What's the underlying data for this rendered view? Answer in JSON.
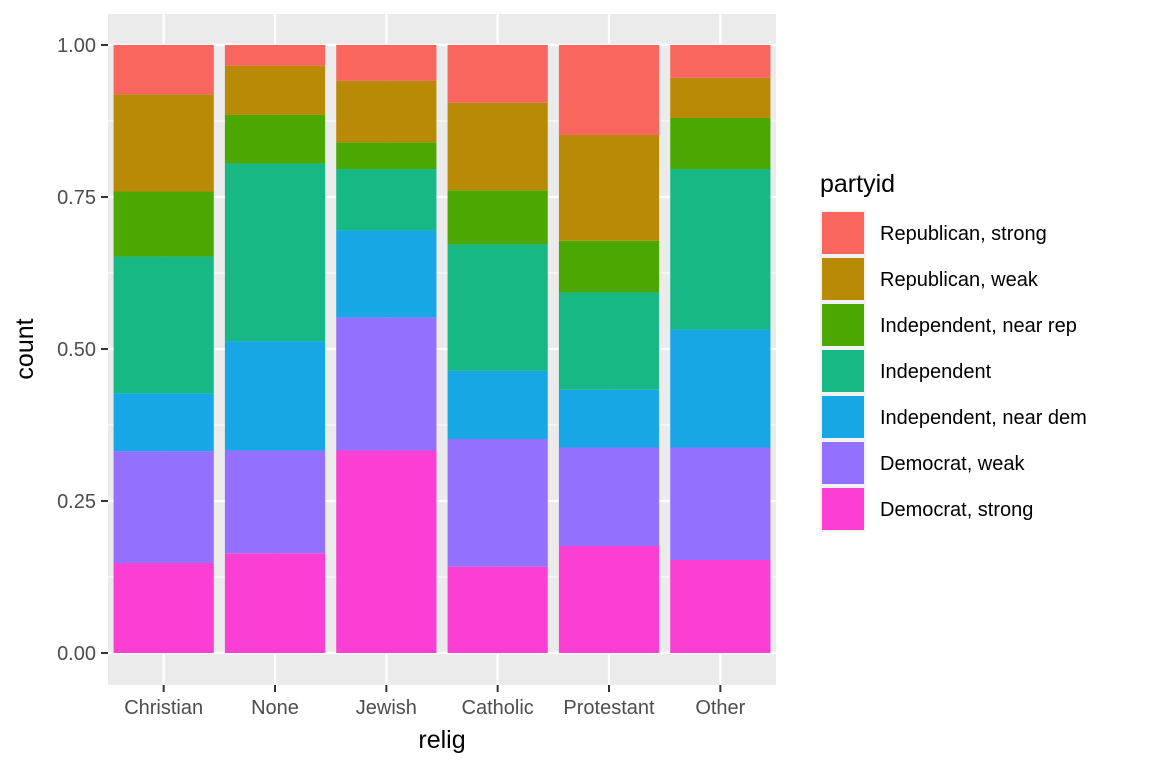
{
  "chart_data": {
    "type": "bar",
    "stacked": true,
    "position": "fill",
    "categories": [
      "Christian",
      "None",
      "Jewish",
      "Catholic",
      "Protestant",
      "Other"
    ],
    "series": [
      {
        "name": "Democrat, strong",
        "color": "#F8766D",
        "fill": "#FB3FD3",
        "values": [
          0.148,
          0.164,
          0.333,
          0.142,
          0.176,
          0.153
        ]
      },
      {
        "name": "Democrat, weak",
        "color": "#9270FF",
        "fill": "#9470FF",
        "values": [
          0.184,
          0.169,
          0.219,
          0.21,
          0.162,
          0.185
        ]
      },
      {
        "name": "Independent, near dem",
        "color": "#1AA6E5",
        "fill": "#17A7E5",
        "values": [
          0.095,
          0.18,
          0.143,
          0.112,
          0.095,
          0.194
        ]
      },
      {
        "name": "Independent",
        "color": "#1BB887",
        "fill": "#17B886",
        "values": [
          0.225,
          0.292,
          0.101,
          0.208,
          0.16,
          0.264
        ]
      },
      {
        "name": "Independent, near rep",
        "color": "#4DAA00",
        "fill": "#4BA803",
        "values": [
          0.107,
          0.08,
          0.044,
          0.089,
          0.085,
          0.084
        ]
      },
      {
        "name": "Republican, weak",
        "color": "#B88A05",
        "fill": "#B88A05",
        "values": [
          0.16,
          0.081,
          0.101,
          0.144,
          0.174,
          0.066
        ]
      },
      {
        "name": "Republican, strong",
        "color": "#F8665E",
        "fill": "#F8665E",
        "values": [
          0.081,
          0.034,
          0.059,
          0.095,
          0.148,
          0.054
        ]
      }
    ],
    "legend_order": [
      "Republican, strong",
      "Republican, weak",
      "Independent, near rep",
      "Independent",
      "Independent, near dem",
      "Democrat, weak",
      "Democrat, strong"
    ],
    "xlabel": "relig",
    "ylabel": "count",
    "ylim": [
      0,
      1
    ],
    "yticks": [
      "0.00",
      "0.25",
      "0.50",
      "0.75",
      "1.00"
    ],
    "ytick_values": [
      0,
      0.25,
      0.5,
      0.75,
      1.0
    ],
    "legend_title": "partyid",
    "legend_position": "right",
    "grid": true
  }
}
